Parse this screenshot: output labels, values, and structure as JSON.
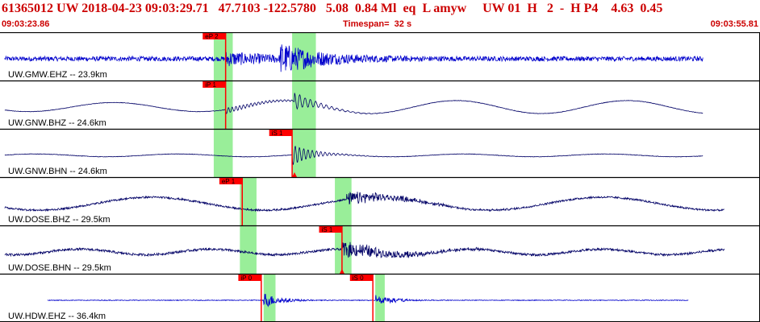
{
  "header": {
    "title": "61365012 UW 2018-04-23 09:03:29.71   47.7103 -122.5780   5.08  0.84 Ml  eq  L amyw     UW 01  H   2  -  H P4    4.63  0.45",
    "start_time": "09:03:23.86",
    "timespan": "Timespan=  32 s",
    "end_time": "09:03:55.81"
  },
  "colors": {
    "trace_blue": "#0000cc",
    "trace_navy": "#000066",
    "pick_red": "#ff0000",
    "window_green": "#99ee99",
    "title_red": "#cc0000",
    "separator": "#000000"
  },
  "traces": [
    {
      "label": "UW.GMW.EHZ -- 23.9km",
      "color": "#0000cc",
      "picks": [
        {
          "label": "eP 2",
          "t": 9.5
        }
      ],
      "windows": [
        [
          9.0,
          9.8
        ],
        [
          12.3,
          13.3
        ]
      ],
      "arrivals": []
    },
    {
      "label": "UW.GNW.BHZ -- 24.6km",
      "color": "#000066",
      "picks": [
        {
          "label": "iP 1",
          "t": 9.5
        }
      ],
      "windows": [
        [
          9.0,
          9.8
        ],
        [
          12.3,
          13.3
        ]
      ],
      "arrivals": []
    },
    {
      "label": "UW.GNW.BHN -- 24.6km",
      "color": "#000066",
      "picks": [
        {
          "label": "iS 1",
          "t": 12.3
        }
      ],
      "windows": [
        [
          9.0,
          9.8
        ],
        [
          12.3,
          13.3
        ]
      ],
      "arrivals": [
        {
          "t": 12.4
        }
      ]
    },
    {
      "label": "UW.DOSE.BHZ -- 29.5km",
      "color": "#000066",
      "picks": [
        {
          "label": "eP 1",
          "t": 10.2
        }
      ],
      "windows": [
        [
          10.1,
          10.8
        ],
        [
          14.1,
          14.8
        ]
      ],
      "arrivals": []
    },
    {
      "label": "UW.DOSE.BHN -- 29.5km",
      "color": "#000066",
      "picks": [
        {
          "label": "iS 1",
          "t": 14.4
        }
      ],
      "windows": [
        [
          10.1,
          10.8
        ],
        [
          14.1,
          14.8
        ]
      ],
      "arrivals": [
        {
          "t": 14.4
        }
      ]
    },
    {
      "label": "UW.HDW.EHZ -- 36.4km",
      "color": "#0000cc",
      "picks": [
        {
          "label": "iP 0",
          "t": 11.0
        },
        {
          "label": "iS 0",
          "t": 15.7
        }
      ],
      "windows": [
        [
          11.1,
          11.6
        ],
        [
          15.8,
          16.2
        ]
      ],
      "arrivals": []
    }
  ]
}
